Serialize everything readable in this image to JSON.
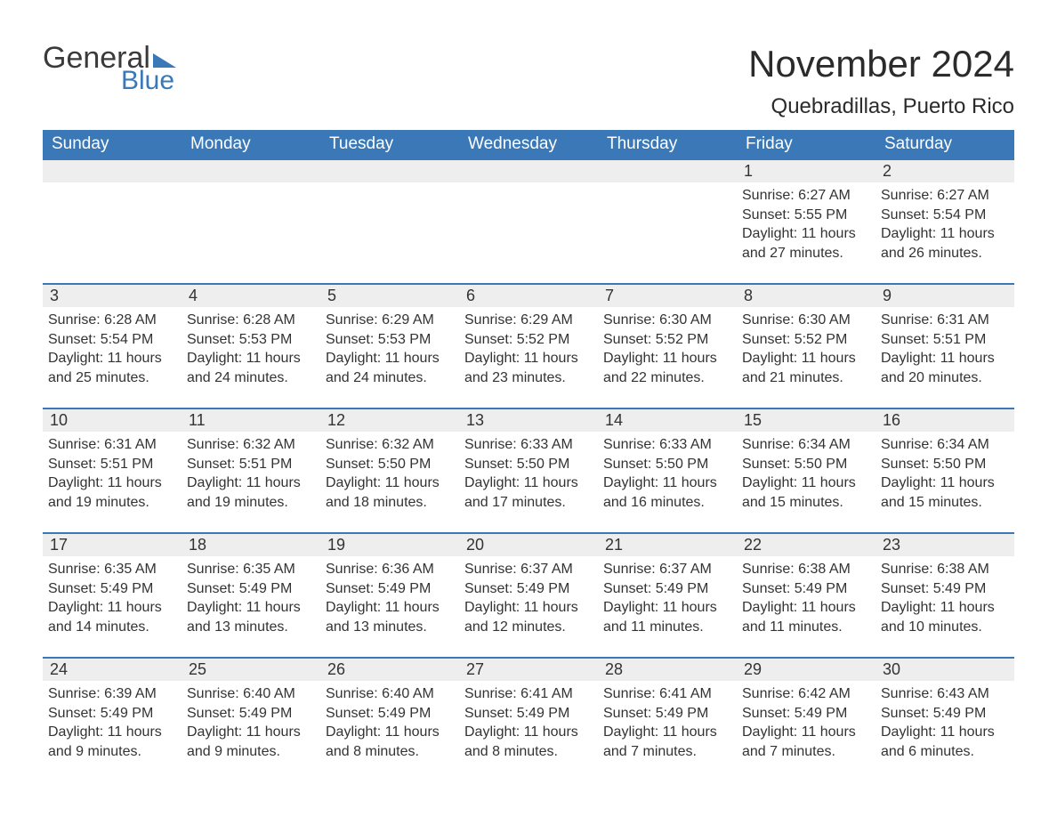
{
  "brand": {
    "word1": "General",
    "word2": "Blue",
    "flag_color": "#3a78b8",
    "text_color": "#3a3a3a"
  },
  "header": {
    "month_title": "November 2024",
    "location": "Quebradillas, Puerto Rico"
  },
  "colors": {
    "header_bg": "#3a78b8",
    "header_text": "#ffffff",
    "daynum_bg": "#eeeeee",
    "daynum_border": "#3a78b8",
    "body_text": "#333333",
    "page_bg": "#ffffff"
  },
  "typography": {
    "month_title_fontsize": 42,
    "location_fontsize": 24,
    "dayheader_fontsize": 19,
    "daynum_fontsize": 18,
    "cell_fontsize": 16
  },
  "day_headers": [
    "Sunday",
    "Monday",
    "Tuesday",
    "Wednesday",
    "Thursday",
    "Friday",
    "Saturday"
  ],
  "weeks": [
    [
      {
        "day": "",
        "sunrise": "",
        "sunset": "",
        "daylight": ""
      },
      {
        "day": "",
        "sunrise": "",
        "sunset": "",
        "daylight": ""
      },
      {
        "day": "",
        "sunrise": "",
        "sunset": "",
        "daylight": ""
      },
      {
        "day": "",
        "sunrise": "",
        "sunset": "",
        "daylight": ""
      },
      {
        "day": "",
        "sunrise": "",
        "sunset": "",
        "daylight": ""
      },
      {
        "day": "1",
        "sunrise": "Sunrise: 6:27 AM",
        "sunset": "Sunset: 5:55 PM",
        "daylight": "Daylight: 11 hours and 27 minutes."
      },
      {
        "day": "2",
        "sunrise": "Sunrise: 6:27 AM",
        "sunset": "Sunset: 5:54 PM",
        "daylight": "Daylight: 11 hours and 26 minutes."
      }
    ],
    [
      {
        "day": "3",
        "sunrise": "Sunrise: 6:28 AM",
        "sunset": "Sunset: 5:54 PM",
        "daylight": "Daylight: 11 hours and 25 minutes."
      },
      {
        "day": "4",
        "sunrise": "Sunrise: 6:28 AM",
        "sunset": "Sunset: 5:53 PM",
        "daylight": "Daylight: 11 hours and 24 minutes."
      },
      {
        "day": "5",
        "sunrise": "Sunrise: 6:29 AM",
        "sunset": "Sunset: 5:53 PM",
        "daylight": "Daylight: 11 hours and 24 minutes."
      },
      {
        "day": "6",
        "sunrise": "Sunrise: 6:29 AM",
        "sunset": "Sunset: 5:52 PM",
        "daylight": "Daylight: 11 hours and 23 minutes."
      },
      {
        "day": "7",
        "sunrise": "Sunrise: 6:30 AM",
        "sunset": "Sunset: 5:52 PM",
        "daylight": "Daylight: 11 hours and 22 minutes."
      },
      {
        "day": "8",
        "sunrise": "Sunrise: 6:30 AM",
        "sunset": "Sunset: 5:52 PM",
        "daylight": "Daylight: 11 hours and 21 minutes."
      },
      {
        "day": "9",
        "sunrise": "Sunrise: 6:31 AM",
        "sunset": "Sunset: 5:51 PM",
        "daylight": "Daylight: 11 hours and 20 minutes."
      }
    ],
    [
      {
        "day": "10",
        "sunrise": "Sunrise: 6:31 AM",
        "sunset": "Sunset: 5:51 PM",
        "daylight": "Daylight: 11 hours and 19 minutes."
      },
      {
        "day": "11",
        "sunrise": "Sunrise: 6:32 AM",
        "sunset": "Sunset: 5:51 PM",
        "daylight": "Daylight: 11 hours and 19 minutes."
      },
      {
        "day": "12",
        "sunrise": "Sunrise: 6:32 AM",
        "sunset": "Sunset: 5:50 PM",
        "daylight": "Daylight: 11 hours and 18 minutes."
      },
      {
        "day": "13",
        "sunrise": "Sunrise: 6:33 AM",
        "sunset": "Sunset: 5:50 PM",
        "daylight": "Daylight: 11 hours and 17 minutes."
      },
      {
        "day": "14",
        "sunrise": "Sunrise: 6:33 AM",
        "sunset": "Sunset: 5:50 PM",
        "daylight": "Daylight: 11 hours and 16 minutes."
      },
      {
        "day": "15",
        "sunrise": "Sunrise: 6:34 AM",
        "sunset": "Sunset: 5:50 PM",
        "daylight": "Daylight: 11 hours and 15 minutes."
      },
      {
        "day": "16",
        "sunrise": "Sunrise: 6:34 AM",
        "sunset": "Sunset: 5:50 PM",
        "daylight": "Daylight: 11 hours and 15 minutes."
      }
    ],
    [
      {
        "day": "17",
        "sunrise": "Sunrise: 6:35 AM",
        "sunset": "Sunset: 5:49 PM",
        "daylight": "Daylight: 11 hours and 14 minutes."
      },
      {
        "day": "18",
        "sunrise": "Sunrise: 6:35 AM",
        "sunset": "Sunset: 5:49 PM",
        "daylight": "Daylight: 11 hours and 13 minutes."
      },
      {
        "day": "19",
        "sunrise": "Sunrise: 6:36 AM",
        "sunset": "Sunset: 5:49 PM",
        "daylight": "Daylight: 11 hours and 13 minutes."
      },
      {
        "day": "20",
        "sunrise": "Sunrise: 6:37 AM",
        "sunset": "Sunset: 5:49 PM",
        "daylight": "Daylight: 11 hours and 12 minutes."
      },
      {
        "day": "21",
        "sunrise": "Sunrise: 6:37 AM",
        "sunset": "Sunset: 5:49 PM",
        "daylight": "Daylight: 11 hours and 11 minutes."
      },
      {
        "day": "22",
        "sunrise": "Sunrise: 6:38 AM",
        "sunset": "Sunset: 5:49 PM",
        "daylight": "Daylight: 11 hours and 11 minutes."
      },
      {
        "day": "23",
        "sunrise": "Sunrise: 6:38 AM",
        "sunset": "Sunset: 5:49 PM",
        "daylight": "Daylight: 11 hours and 10 minutes."
      }
    ],
    [
      {
        "day": "24",
        "sunrise": "Sunrise: 6:39 AM",
        "sunset": "Sunset: 5:49 PM",
        "daylight": "Daylight: 11 hours and 9 minutes."
      },
      {
        "day": "25",
        "sunrise": "Sunrise: 6:40 AM",
        "sunset": "Sunset: 5:49 PM",
        "daylight": "Daylight: 11 hours and 9 minutes."
      },
      {
        "day": "26",
        "sunrise": "Sunrise: 6:40 AM",
        "sunset": "Sunset: 5:49 PM",
        "daylight": "Daylight: 11 hours and 8 minutes."
      },
      {
        "day": "27",
        "sunrise": "Sunrise: 6:41 AM",
        "sunset": "Sunset: 5:49 PM",
        "daylight": "Daylight: 11 hours and 8 minutes."
      },
      {
        "day": "28",
        "sunrise": "Sunrise: 6:41 AM",
        "sunset": "Sunset: 5:49 PM",
        "daylight": "Daylight: 11 hours and 7 minutes."
      },
      {
        "day": "29",
        "sunrise": "Sunrise: 6:42 AM",
        "sunset": "Sunset: 5:49 PM",
        "daylight": "Daylight: 11 hours and 7 minutes."
      },
      {
        "day": "30",
        "sunrise": "Sunrise: 6:43 AM",
        "sunset": "Sunset: 5:49 PM",
        "daylight": "Daylight: 11 hours and 6 minutes."
      }
    ]
  ]
}
